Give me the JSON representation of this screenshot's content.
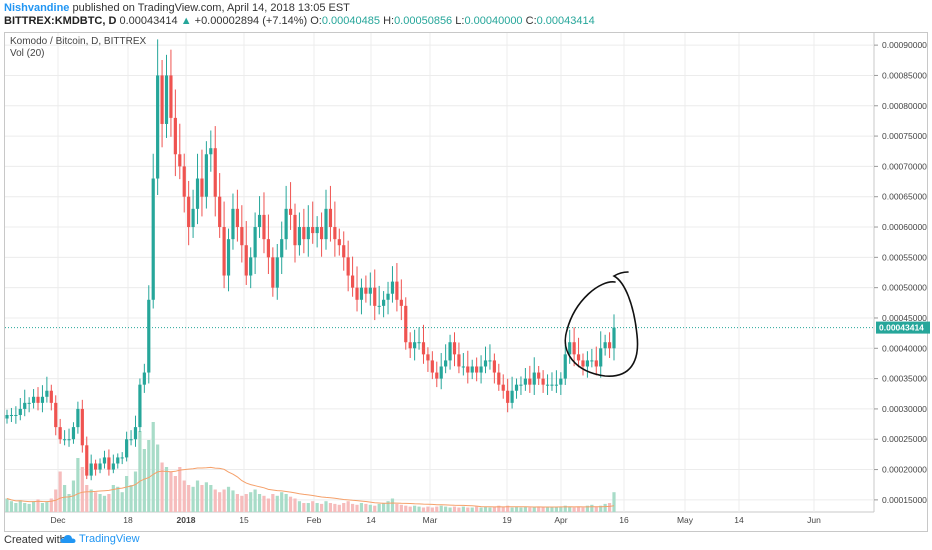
{
  "header": {
    "author": "Nishvandine",
    "published_text": "published on TradingView.com, April 14, 2018 13:05 EST",
    "symbol": "BITTREX:KMDBTC, D",
    "close_value": "0.00043414",
    "change_arrow": "▲",
    "change_text": "+0.00002894 (+7.14%)",
    "o_label": "O:",
    "o_value": "0.00040485",
    "h_label": "H:",
    "h_value": "0.00050856",
    "l_label": "L:",
    "l_value": "0.00040000",
    "c_label": "C:",
    "c_value": "0.00043414"
  },
  "legend": {
    "title": "Komodo / Bitcoin, D, BITTREX",
    "vol": "Vol (20)"
  },
  "footer": {
    "created_with": "Created with",
    "brand": "TradingView"
  },
  "colors": {
    "up": "#26a69a",
    "down": "#ef5350",
    "vol_up": "#a8dcc8",
    "vol_down": "#f6bcbc",
    "ma": "#f5a06a",
    "price_line": "#26a69a",
    "grid": "#ececec",
    "annotation": "#111111"
  },
  "chart_data": {
    "type": "candlestick",
    "title": "Komodo / Bitcoin, D, BITTREX",
    "y_range": [
      0.00013,
      0.00092
    ],
    "y_ticks": [
      "0.00090000",
      "0.00085000",
      "0.00080000",
      "0.00075000",
      "0.00070000",
      "0.00065000",
      "0.00060000",
      "0.00055000",
      "0.00050000",
      "0.00045000",
      "0.00040000",
      "0.00035000",
      "0.00030000",
      "0.00025000",
      "0.00020000",
      "0.00015000"
    ],
    "x_ticks": [
      {
        "label": "Dec",
        "bold": false
      },
      {
        "label": "18",
        "bold": false
      },
      {
        "label": "2018",
        "bold": true
      },
      {
        "label": "15",
        "bold": false
      },
      {
        "label": "Feb",
        "bold": false
      },
      {
        "label": "14",
        "bold": false
      },
      {
        "label": "Mar",
        "bold": false
      },
      {
        "label": "19",
        "bold": false
      },
      {
        "label": "Apr",
        "bold": false
      },
      {
        "label": "16",
        "bold": false
      },
      {
        "label": "May",
        "bold": false
      },
      {
        "label": "14",
        "bold": false
      },
      {
        "label": "Jun",
        "bold": false
      }
    ],
    "last_price_label": "0.00043414",
    "last_price": 0.00043414,
    "close_series": [
      0.00029,
      0.00029,
      0.00029,
      0.0003,
      0.00031,
      0.00031,
      0.00032,
      0.00031,
      0.00032,
      0.00033,
      0.00031,
      0.00027,
      0.00025,
      0.00025,
      0.00025,
      0.00027,
      0.0003,
      0.00024,
      0.00019,
      0.00021,
      0.0002,
      0.00021,
      0.00022,
      0.0002,
      0.00021,
      0.00022,
      0.00022,
      0.00025,
      0.00025,
      0.00027,
      0.00034,
      0.00036,
      0.00048,
      0.00068,
      0.00085,
      0.00077,
      0.00085,
      0.00078,
      0.00072,
      0.0007,
      0.00065,
      0.0006,
      0.00063,
      0.00068,
      0.00065,
      0.00072,
      0.00073,
      0.00065,
      0.0006,
      0.00052,
      0.00058,
      0.00063,
      0.0006,
      0.00057,
      0.00052,
      0.00055,
      0.0006,
      0.00062,
      0.00058,
      0.00055,
      0.0005,
      0.00055,
      0.00058,
      0.00063,
      0.00062,
      0.00057,
      0.0006,
      0.00058,
      0.0006,
      0.00059,
      0.0006,
      0.00058,
      0.00063,
      0.0006,
      0.00058,
      0.00057,
      0.00055,
      0.00052,
      0.0005,
      0.00048,
      0.0005,
      0.00049,
      0.0005,
      0.00047,
      0.00047,
      0.00048,
      0.00049,
      0.00051,
      0.00048,
      0.00047,
      0.00041,
      0.0004,
      0.00041,
      0.00041,
      0.00039,
      0.00038,
      0.00036,
      0.00035,
      0.00037,
      0.00038,
      0.00041,
      0.00039,
      0.00037,
      0.00037,
      0.00036,
      0.00037,
      0.00036,
      0.00037,
      0.00038,
      0.00038,
      0.00036,
      0.00034,
      0.00033,
      0.00031,
      0.00033,
      0.00034,
      0.00034,
      0.00035,
      0.00034,
      0.00036,
      0.00035,
      0.00034,
      0.00034,
      0.00034,
      0.00034,
      0.00035,
      0.00039,
      0.00041,
      0.00039,
      0.00038,
      0.00037,
      0.00038,
      0.00038,
      0.00037,
      0.0004,
      0.00041,
      0.0004,
      0.00043414
    ],
    "volume_relative": [
      0.15,
      0.12,
      0.1,
      0.13,
      0.1,
      0.09,
      0.12,
      0.14,
      0.1,
      0.11,
      0.15,
      0.25,
      0.45,
      0.3,
      0.2,
      0.35,
      0.6,
      0.5,
      0.3,
      0.25,
      0.22,
      0.2,
      0.18,
      0.2,
      0.3,
      0.28,
      0.22,
      0.4,
      0.3,
      0.45,
      0.9,
      0.7,
      0.8,
      1.0,
      0.75,
      0.55,
      0.5,
      0.45,
      0.4,
      0.5,
      0.35,
      0.3,
      0.28,
      0.35,
      0.3,
      0.33,
      0.3,
      0.25,
      0.22,
      0.25,
      0.28,
      0.24,
      0.2,
      0.18,
      0.2,
      0.22,
      0.25,
      0.2,
      0.18,
      0.15,
      0.2,
      0.18,
      0.22,
      0.2,
      0.17,
      0.15,
      0.12,
      0.1,
      0.1,
      0.12,
      0.1,
      0.09,
      0.12,
      0.1,
      0.09,
      0.08,
      0.1,
      0.12,
      0.09,
      0.08,
      0.1,
      0.09,
      0.08,
      0.07,
      0.09,
      0.1,
      0.12,
      0.15,
      0.09,
      0.08,
      0.07,
      0.06,
      0.07,
      0.06,
      0.05,
      0.06,
      0.05,
      0.06,
      0.07,
      0.06,
      0.05,
      0.06,
      0.05,
      0.06,
      0.05,
      0.05,
      0.06,
      0.05,
      0.06,
      0.05,
      0.06,
      0.07,
      0.06,
      0.07,
      0.05,
      0.06,
      0.05,
      0.06,
      0.05,
      0.05,
      0.06,
      0.05,
      0.05,
      0.06,
      0.05,
      0.06,
      0.07,
      0.06,
      0.05,
      0.06,
      0.05,
      0.07,
      0.08,
      0.06,
      0.07,
      0.09,
      0.1,
      0.22
    ]
  }
}
